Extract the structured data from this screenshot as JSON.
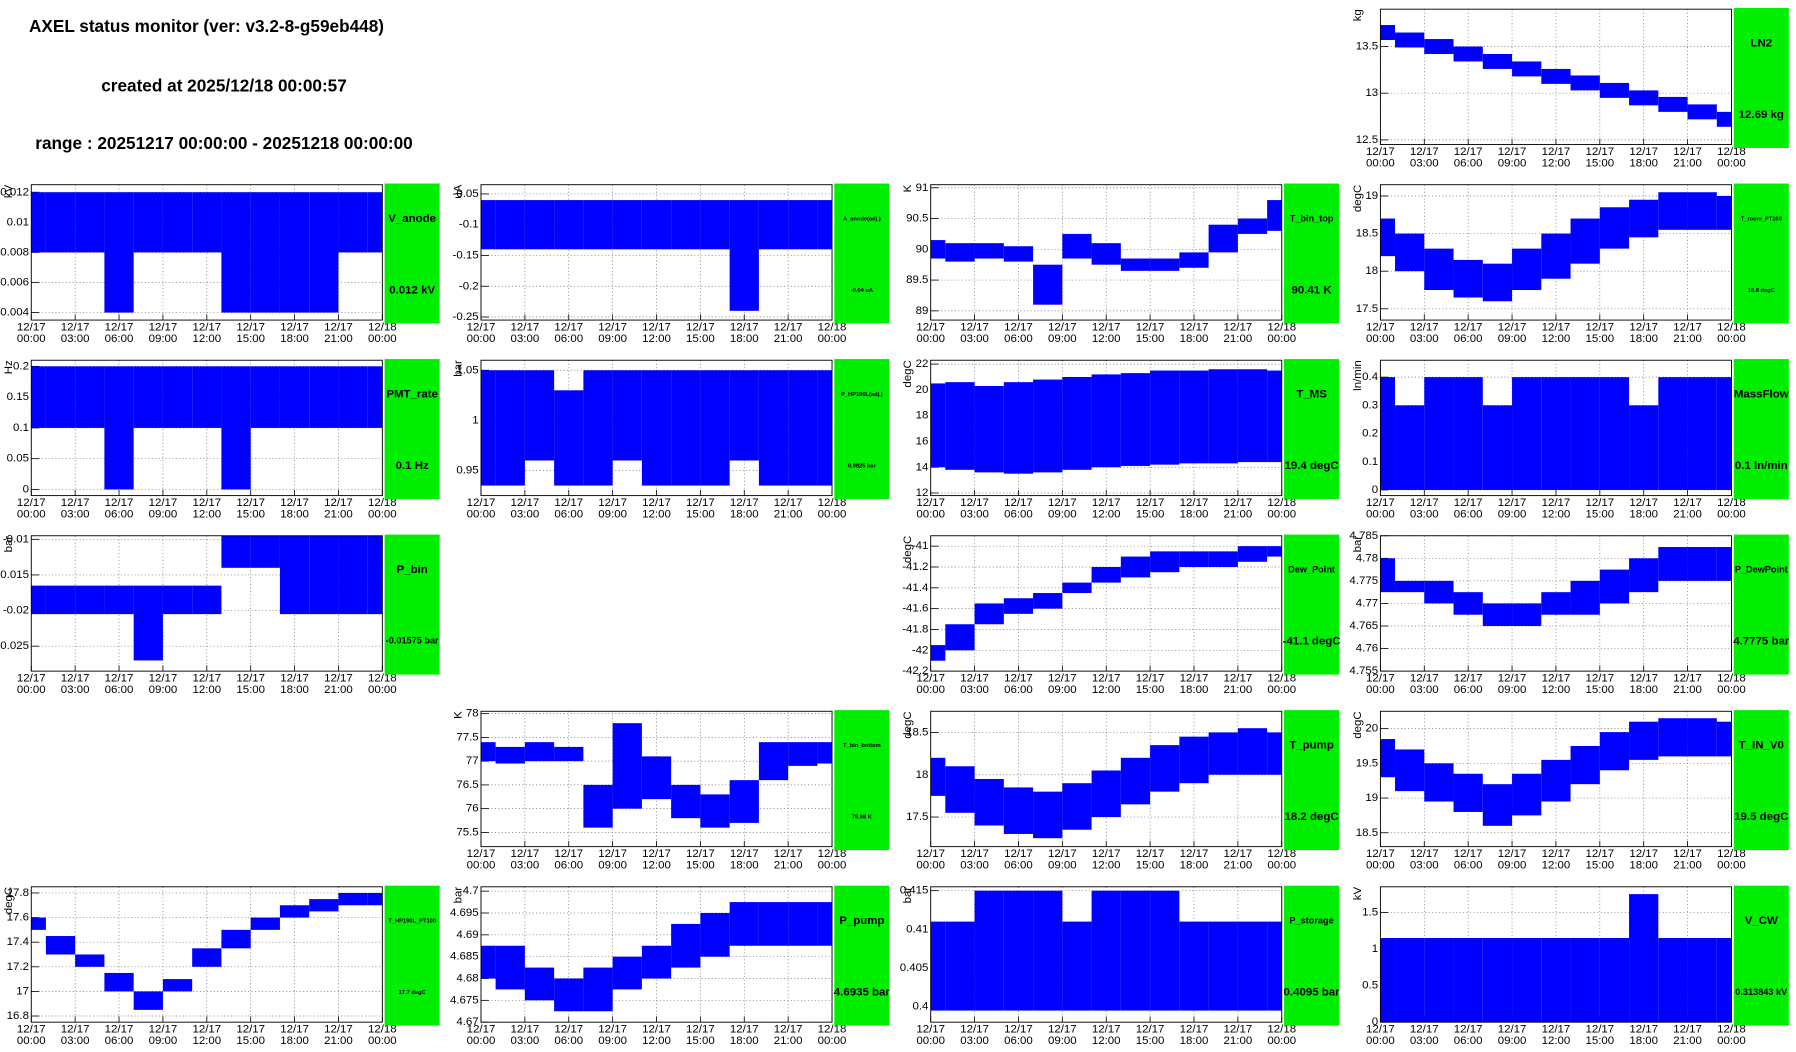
{
  "header": {
    "title": "AXEL status monitor (ver: v3.2-8-g59eb448)",
    "created": "created at 2025/12/18 00:00:57",
    "range": "range : 20251217 00:00:00 - 20251218 00:00:00"
  },
  "time_axis": {
    "xlim": [
      0,
      24
    ],
    "x": [
      0,
      2,
      4,
      6,
      8,
      10,
      12,
      14,
      16,
      18,
      20,
      22,
      24
    ],
    "xticks": [
      {
        "value": 0,
        "label": "12/17 00:00"
      },
      {
        "value": 3,
        "label": "12/17 03:00"
      },
      {
        "value": 6,
        "label": "12/17 06:00"
      },
      {
        "value": 9,
        "label": "12/17 09:00"
      },
      {
        "value": 12,
        "label": "12/17 12:00"
      },
      {
        "value": 15,
        "label": "12/17 15:00"
      },
      {
        "value": 18,
        "label": "12/17 18:00"
      },
      {
        "value": 21,
        "label": "12/17 21:00"
      },
      {
        "value": 24,
        "label": "12/18 00:00"
      }
    ]
  },
  "chart_data": [
    {
      "type": "band",
      "title": "LN2",
      "y_label": "kg",
      "current": "12.69 kg",
      "grid": true,
      "panel_color": "#00ee00",
      "ylim": [
        12.45,
        13.9
      ],
      "yticks": [
        12.5,
        13,
        13.5
      ],
      "series": [
        {
          "color": "#0000ff",
          "values": [
            13.57,
            13.49,
            13.42,
            13.34,
            13.26,
            13.18,
            13.1,
            13.03,
            12.95,
            12.87,
            12.8,
            12.72,
            12.64
          ]
        },
        {
          "color": "#0000ff",
          "values": [
            13.73,
            13.65,
            13.58,
            13.5,
            13.42,
            13.34,
            13.26,
            13.19,
            13.11,
            13.03,
            12.96,
            12.88,
            12.8
          ]
        }
      ]
    },
    {
      "type": "band",
      "title": "V_anode",
      "y_label": "kV",
      "current": "0.012 kV",
      "grid": true,
      "panel_color": "#00ee00",
      "ylim": [
        0.0035,
        0.0125
      ],
      "yticks": [
        0.004,
        0.006,
        0.008,
        0.01,
        0.012
      ],
      "series": [
        {
          "color": "#0000ff",
          "values": [
            0.008,
            0.008,
            0.008,
            0.004,
            0.008,
            0.008,
            0.008,
            0.004,
            0.004,
            0.004,
            0.004,
            0.008,
            0.008
          ]
        },
        {
          "color": "#0000ff",
          "values": [
            0.012,
            0.012,
            0.012,
            0.012,
            0.012,
            0.012,
            0.012,
            0.012,
            0.012,
            0.012,
            0.012,
            0.012,
            0.012
          ]
        }
      ]
    },
    {
      "type": "band",
      "title": "A_anode(adj.)",
      "y_label": "uA",
      "current": "-0.04 uA",
      "grid": true,
      "panel_color": "#00ee00",
      "ylim": [
        -0.255,
        -0.035
      ],
      "yticks": [
        -0.25,
        -0.2,
        -0.15,
        -0.1,
        -0.05
      ],
      "series": [
        {
          "color": "#0000ff",
          "values": [
            -0.14,
            -0.14,
            -0.14,
            -0.14,
            -0.14,
            -0.14,
            -0.14,
            -0.14,
            -0.14,
            -0.24,
            -0.14,
            -0.14,
            -0.14
          ]
        },
        {
          "color": "#0000ff",
          "values": [
            -0.06,
            -0.06,
            -0.06,
            -0.06,
            -0.06,
            -0.06,
            -0.06,
            -0.06,
            -0.06,
            -0.06,
            -0.06,
            -0.06,
            -0.06
          ]
        }
      ]
    },
    {
      "type": "band",
      "title": "T_bin_top",
      "y_label": "K",
      "current": "90.41 K",
      "grid": true,
      "panel_color": "#00ee00",
      "ylim": [
        88.85,
        91.05
      ],
      "yticks": [
        89,
        89.5,
        90,
        90.5,
        91
      ],
      "series": [
        {
          "color": "#0000ff",
          "values": [
            89.85,
            89.8,
            89.85,
            89.8,
            89.1,
            89.85,
            89.75,
            89.65,
            89.65,
            89.7,
            89.95,
            90.25,
            90.3
          ]
        },
        {
          "color": "#0000ff",
          "values": [
            90.15,
            90.1,
            90.1,
            90.05,
            89.75,
            90.25,
            90.1,
            89.85,
            89.85,
            89.95,
            90.4,
            90.5,
            90.8
          ]
        }
      ]
    },
    {
      "type": "band",
      "title": "T_room_PT100",
      "y_label": "degC",
      "current": "18.8 degC",
      "grid": true,
      "panel_color": "#00ee00",
      "ylim": [
        17.35,
        19.15
      ],
      "yticks": [
        17.5,
        18,
        18.5,
        19
      ],
      "series": [
        {
          "color": "#0000ff",
          "values": [
            18.2,
            18,
            17.75,
            17.65,
            17.6,
            17.75,
            17.9,
            18.1,
            18.3,
            18.45,
            18.55,
            18.55,
            18.55
          ]
        },
        {
          "color": "#0000ff",
          "values": [
            18.7,
            18.5,
            18.3,
            18.15,
            18.1,
            18.3,
            18.5,
            18.7,
            18.85,
            18.95,
            19.05,
            19.05,
            19
          ]
        }
      ]
    },
    {
      "type": "band",
      "title": "PMT_rate",
      "y_label": "Hz",
      "current": "0.1 Hz",
      "grid": true,
      "panel_color": "#00ee00",
      "ylim": [
        -0.01,
        0.21
      ],
      "yticks": [
        0,
        0.05,
        0.1,
        0.15,
        0.2
      ],
      "series": [
        {
          "color": "#0000ff",
          "values": [
            0.1,
            0.1,
            0.1,
            0,
            0.1,
            0.1,
            0.1,
            0,
            0.1,
            0.1,
            0.1,
            0.1,
            0.1
          ]
        },
        {
          "color": "#0000ff",
          "values": [
            0.2,
            0.2,
            0.2,
            0.2,
            0.2,
            0.2,
            0.2,
            0.2,
            0.2,
            0.2,
            0.2,
            0.2,
            0.2
          ]
        }
      ]
    },
    {
      "type": "band",
      "title": "P_HP190L(adj.)",
      "y_label": "bar",
      "current": "0.9825 bar",
      "grid": true,
      "panel_color": "#00ee00",
      "ylim": [
        0.925,
        1.06
      ],
      "yticks": [
        0.95,
        1,
        1.05
      ],
      "series": [
        {
          "color": "#0000ff",
          "values": [
            0.935,
            0.935,
            0.96,
            0.935,
            0.935,
            0.96,
            0.935,
            0.935,
            0.935,
            0.96,
            0.935,
            0.935,
            0.935
          ]
        },
        {
          "color": "#0000ff",
          "values": [
            1.05,
            1.05,
            1.05,
            1.03,
            1.05,
            1.05,
            1.05,
            1.05,
            1.05,
            1.05,
            1.05,
            1.05,
            1.05
          ]
        }
      ]
    },
    {
      "type": "band",
      "title": "T_MS",
      "y_label": "degC",
      "current": "19.4 degC",
      "grid": true,
      "panel_color": "#00ee00",
      "ylim": [
        11.8,
        22.3
      ],
      "yticks": [
        12,
        14,
        16,
        18,
        20,
        22
      ],
      "series": [
        {
          "color": "#0000ff",
          "values": [
            14,
            13.8,
            13.6,
            13.5,
            13.6,
            13.8,
            14,
            14.1,
            14.2,
            14.3,
            14.3,
            14.4,
            14.4
          ]
        },
        {
          "color": "#0000ff",
          "values": [
            20.5,
            20.6,
            20.3,
            20.6,
            20.8,
            21,
            21.2,
            21.3,
            21.5,
            21.5,
            21.6,
            21.6,
            21.5
          ]
        }
      ]
    },
    {
      "type": "band",
      "title": "MassFlow",
      "y_label": "ln/min",
      "current": "0.1 ln/min",
      "grid": true,
      "panel_color": "#00ee00",
      "ylim": [
        -0.02,
        0.46
      ],
      "yticks": [
        0,
        0.1,
        0.2,
        0.3,
        0.4
      ],
      "series": [
        {
          "color": "#0000ff",
          "values": [
            0,
            0,
            0,
            0,
            0,
            0,
            0,
            0,
            0,
            0,
            0,
            0,
            0
          ]
        },
        {
          "color": "#0000ff",
          "values": [
            0.4,
            0.3,
            0.4,
            0.4,
            0.3,
            0.4,
            0.4,
            0.4,
            0.4,
            0.3,
            0.4,
            0.4,
            0.4
          ]
        }
      ]
    },
    {
      "type": "band",
      "title": "P_bin",
      "y_label": "bar",
      "current": "-0.01575 bar",
      "grid": true,
      "panel_color": "#00ee00",
      "ylim": [
        -0.0285,
        -0.0095
      ],
      "yticks": [
        -0.025,
        -0.02,
        -0.015,
        -0.01
      ],
      "series": [
        {
          "color": "#0000ff",
          "values": [
            -0.0205,
            -0.0205,
            -0.0205,
            -0.0205,
            -0.027,
            -0.0205,
            -0.0205,
            -0.014,
            -0.014,
            -0.0205,
            -0.0205,
            -0.0205,
            -0.0205
          ]
        },
        {
          "color": "#0000ff",
          "values": [
            -0.0165,
            -0.0165,
            -0.0165,
            -0.0165,
            -0.0165,
            -0.0165,
            -0.0165,
            -0.0095,
            -0.0095,
            -0.0095,
            -0.0095,
            -0.0095,
            -0.0095
          ]
        }
      ]
    },
    {
      "type": "band",
      "title": "Dew_Point",
      "y_label": "degC",
      "current": "-41.1 degC",
      "grid": true,
      "panel_color": "#00ee00",
      "ylim": [
        -42.2,
        -40.9
      ],
      "yticks": [
        -42.2,
        -42,
        -41.8,
        -41.6,
        -41.4,
        -41.2,
        -41
      ],
      "series": [
        {
          "color": "#0000ff",
          "values": [
            -42.1,
            -42,
            -41.75,
            -41.65,
            -41.6,
            -41.45,
            -41.35,
            -41.3,
            -41.25,
            -41.2,
            -41.2,
            -41.15,
            -41.1
          ]
        },
        {
          "color": "#0000ff",
          "values": [
            -41.95,
            -41.75,
            -41.55,
            -41.5,
            -41.45,
            -41.35,
            -41.2,
            -41.1,
            -41.05,
            -41.05,
            -41.05,
            -41,
            -41
          ]
        }
      ]
    },
    {
      "type": "band",
      "title": "P_DewPoint",
      "y_label": "bar",
      "current": "4.7775 bar",
      "grid": true,
      "panel_color": "#00ee00",
      "ylim": [
        4.755,
        4.785
      ],
      "yticks": [
        4.755,
        4.76,
        4.765,
        4.77,
        4.775,
        4.78,
        4.785
      ],
      "series": [
        {
          "color": "#0000ff",
          "values": [
            4.7725,
            4.7725,
            4.77,
            4.7675,
            4.765,
            4.765,
            4.7675,
            4.7675,
            4.77,
            4.7725,
            4.775,
            4.775,
            4.775
          ]
        },
        {
          "color": "#0000ff",
          "values": [
            4.78,
            4.775,
            4.775,
            4.7725,
            4.77,
            4.77,
            4.7725,
            4.775,
            4.7775,
            4.78,
            4.7825,
            4.7825,
            4.7825
          ]
        }
      ]
    },
    {
      "type": "band",
      "title": "T_bin_bottom",
      "y_label": "K",
      "current": "76.98 K",
      "grid": true,
      "panel_color": "#00ee00",
      "ylim": [
        75.2,
        78.05
      ],
      "yticks": [
        75.5,
        76,
        76.5,
        77,
        77.5,
        78
      ],
      "series": [
        {
          "color": "#0000ff",
          "values": [
            77,
            76.95,
            77,
            77,
            75.6,
            76,
            76.2,
            75.8,
            75.6,
            75.7,
            76.6,
            76.9,
            76.95
          ]
        },
        {
          "color": "#0000ff",
          "values": [
            77.4,
            77.3,
            77.4,
            77.3,
            76.5,
            77.8,
            77.1,
            76.5,
            76.3,
            76.6,
            77.4,
            77.4,
            77.4
          ]
        }
      ]
    },
    {
      "type": "band",
      "title": "T_pump",
      "y_label": "degC",
      "current": "18.2 degC",
      "grid": true,
      "panel_color": "#00ee00",
      "ylim": [
        17.15,
        18.75
      ],
      "yticks": [
        17.5,
        18,
        18.5
      ],
      "series": [
        {
          "color": "#0000ff",
          "values": [
            17.75,
            17.55,
            17.4,
            17.3,
            17.25,
            17.35,
            17.5,
            17.65,
            17.8,
            17.9,
            18,
            18,
            18
          ]
        },
        {
          "color": "#0000ff",
          "values": [
            18.2,
            18.1,
            17.95,
            17.85,
            17.8,
            17.9,
            18.05,
            18.2,
            18.35,
            18.45,
            18.5,
            18.55,
            18.5
          ]
        }
      ]
    },
    {
      "type": "band",
      "title": "T_IN_V0",
      "y_label": "degC",
      "current": "19.5 degC",
      "grid": true,
      "panel_color": "#00ee00",
      "ylim": [
        18.3,
        20.25
      ],
      "yticks": [
        18.5,
        19,
        19.5,
        20
      ],
      "series": [
        {
          "color": "#0000ff",
          "values": [
            19.3,
            19.1,
            18.95,
            18.8,
            18.6,
            18.75,
            18.95,
            19.2,
            19.4,
            19.55,
            19.6,
            19.6,
            19.6
          ]
        },
        {
          "color": "#0000ff",
          "values": [
            19.85,
            19.7,
            19.5,
            19.35,
            19.2,
            19.35,
            19.55,
            19.75,
            19.95,
            20.1,
            20.15,
            20.15,
            20.1
          ]
        }
      ]
    },
    {
      "type": "band",
      "title": "T_HP190L_PT100",
      "y_label": "degC",
      "current": "17.7 degC",
      "grid": true,
      "panel_color": "#00ee00",
      "ylim": [
        16.75,
        17.85
      ],
      "yticks": [
        16.8,
        17,
        17.2,
        17.4,
        17.6,
        17.8
      ],
      "series": [
        {
          "color": "#0000ff",
          "values": [
            17.5,
            17.3,
            17.2,
            17,
            16.85,
            17,
            17.2,
            17.35,
            17.5,
            17.6,
            17.65,
            17.7,
            17.7
          ]
        },
        {
          "color": "#0000ff",
          "values": [
            17.6,
            17.45,
            17.3,
            17.15,
            17,
            17.1,
            17.35,
            17.5,
            17.6,
            17.7,
            17.75,
            17.8,
            17.8
          ]
        }
      ]
    },
    {
      "type": "band",
      "title": "P_pump",
      "y_label": "bar",
      "current": "4.6935 bar",
      "grid": true,
      "panel_color": "#00ee00",
      "ylim": [
        4.67,
        4.701
      ],
      "yticks": [
        4.67,
        4.675,
        4.68,
        4.685,
        4.69,
        4.695,
        4.7
      ],
      "series": [
        {
          "color": "#0000ff",
          "values": [
            4.68,
            4.6775,
            4.675,
            4.6725,
            4.6725,
            4.6775,
            4.68,
            4.6825,
            4.685,
            4.6875,
            4.6875,
            4.6875,
            4.6875
          ]
        },
        {
          "color": "#0000ff",
          "values": [
            4.6875,
            4.6875,
            4.6825,
            4.68,
            4.6825,
            4.685,
            4.6875,
            4.6925,
            4.695,
            4.6975,
            4.6975,
            4.6975,
            4.6975
          ]
        }
      ]
    },
    {
      "type": "band",
      "title": "P_storage",
      "y_label": "bar",
      "current": "0.4095 bar",
      "grid": true,
      "panel_color": "#00ee00",
      "ylim": [
        0.398,
        0.4155
      ],
      "yticks": [
        0.4,
        0.405,
        0.41,
        0.415
      ],
      "series": [
        {
          "color": "#0000ff",
          "values": [
            0.3995,
            0.3995,
            0.3995,
            0.3995,
            0.3995,
            0.3995,
            0.3995,
            0.3995,
            0.3995,
            0.3995,
            0.3995,
            0.3995,
            0.3995
          ]
        },
        {
          "color": "#0000ff",
          "values": [
            0.411,
            0.411,
            0.415,
            0.415,
            0.415,
            0.411,
            0.415,
            0.415,
            0.415,
            0.411,
            0.411,
            0.411,
            0.411
          ]
        }
      ]
    },
    {
      "type": "band",
      "title": "V_CW",
      "y_label": "kV",
      "current": "0.313843 kV",
      "grid": true,
      "panel_color": "#00ee00",
      "ylim": [
        0,
        1.85
      ],
      "yticks": [
        0,
        0.5,
        1,
        1.5
      ],
      "series": [
        {
          "color": "#0000ff",
          "values": [
            0,
            0,
            0,
            0,
            0,
            0,
            0,
            0,
            0,
            0,
            0,
            0,
            0
          ]
        },
        {
          "color": "#0000ff",
          "values": [
            1.15,
            1.15,
            1.15,
            1.15,
            1.15,
            1.15,
            1.15,
            1.15,
            1.15,
            1.75,
            1.15,
            1.15,
            1.15
          ]
        }
      ]
    }
  ]
}
